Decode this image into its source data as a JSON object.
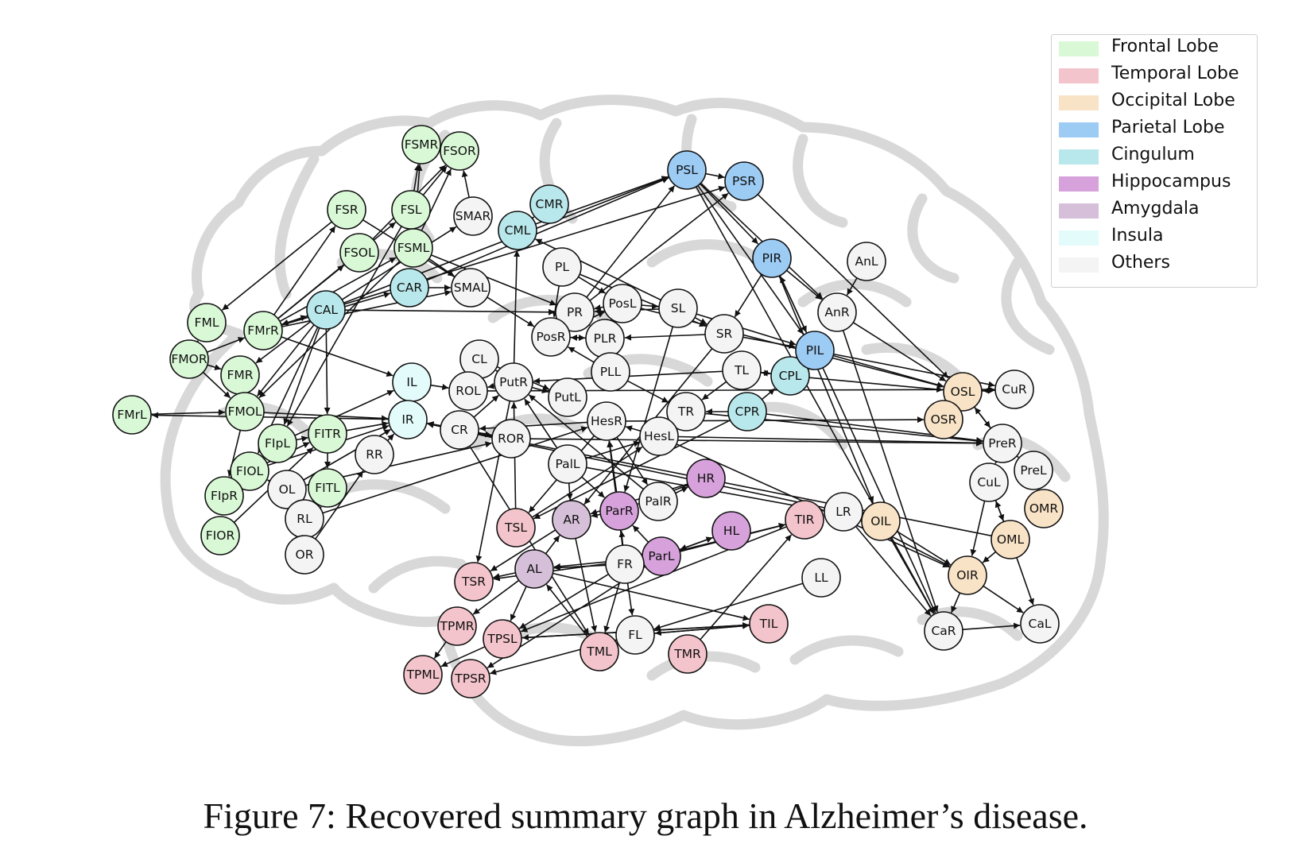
{
  "caption": "Figure 7: Recovered summary graph in Alzheimer’s disease.",
  "legend": [
    {
      "label": "Frontal Lobe",
      "color": "#d9f8d6"
    },
    {
      "label": "Temporal Lobe",
      "color": "#f3c4cb"
    },
    {
      "label": "Occipital Lobe",
      "color": "#f9e3c6"
    },
    {
      "label": "Parietal Lobe",
      "color": "#9ccbf4"
    },
    {
      "label": "Cingulum",
      "color": "#b9e8ec"
    },
    {
      "label": "Hippocampus",
      "color": "#d7a2dc"
    },
    {
      "label": "Amygdala",
      "color": "#d6c0d9"
    },
    {
      "label": "Insula",
      "color": "#e3fbfb"
    },
    {
      "label": "Others",
      "color": "#f4f4f4"
    }
  ],
  "nodes": [
    {
      "id": "FSMR",
      "group": "Frontal Lobe"
    },
    {
      "id": "FSOR",
      "group": "Frontal Lobe"
    },
    {
      "id": "FSR",
      "group": "Frontal Lobe"
    },
    {
      "id": "FSL",
      "group": "Frontal Lobe"
    },
    {
      "id": "FSOL",
      "group": "Frontal Lobe"
    },
    {
      "id": "FSML",
      "group": "Frontal Lobe"
    },
    {
      "id": "FML",
      "group": "Frontal Lobe"
    },
    {
      "id": "FMrR",
      "group": "Frontal Lobe"
    },
    {
      "id": "FMOR",
      "group": "Frontal Lobe"
    },
    {
      "id": "FMR",
      "group": "Frontal Lobe"
    },
    {
      "id": "FMOL",
      "group": "Frontal Lobe"
    },
    {
      "id": "FMrL",
      "group": "Frontal Lobe"
    },
    {
      "id": "FIpL",
      "group": "Frontal Lobe"
    },
    {
      "id": "FITR",
      "group": "Frontal Lobe"
    },
    {
      "id": "FIOL",
      "group": "Frontal Lobe"
    },
    {
      "id": "FIpR",
      "group": "Frontal Lobe"
    },
    {
      "id": "FITL",
      "group": "Frontal Lobe"
    },
    {
      "id": "FIOR",
      "group": "Frontal Lobe"
    },
    {
      "id": "SMAR",
      "group": "Others"
    },
    {
      "id": "SMAL",
      "group": "Others"
    },
    {
      "id": "CMR",
      "group": "Cingulum"
    },
    {
      "id": "CML",
      "group": "Cingulum"
    },
    {
      "id": "CAR",
      "group": "Cingulum"
    },
    {
      "id": "CAL",
      "group": "Cingulum"
    },
    {
      "id": "CPL",
      "group": "Cingulum"
    },
    {
      "id": "CPR",
      "group": "Cingulum"
    },
    {
      "id": "IL",
      "group": "Insula"
    },
    {
      "id": "IR",
      "group": "Insula"
    },
    {
      "id": "PSL",
      "group": "Parietal Lobe"
    },
    {
      "id": "PSR",
      "group": "Parietal Lobe"
    },
    {
      "id": "PIR",
      "group": "Parietal Lobe"
    },
    {
      "id": "PIL",
      "group": "Parietal Lobe"
    },
    {
      "id": "AnL",
      "group": "Others"
    },
    {
      "id": "AnR",
      "group": "Others"
    },
    {
      "id": "PL",
      "group": "Others"
    },
    {
      "id": "PR",
      "group": "Others"
    },
    {
      "id": "PosL",
      "group": "Others"
    },
    {
      "id": "PosR",
      "group": "Others"
    },
    {
      "id": "PLR",
      "group": "Others"
    },
    {
      "id": "PLL",
      "group": "Others"
    },
    {
      "id": "SL",
      "group": "Others"
    },
    {
      "id": "SR",
      "group": "Others"
    },
    {
      "id": "TL",
      "group": "Others"
    },
    {
      "id": "TR",
      "group": "Others"
    },
    {
      "id": "CL",
      "group": "Others"
    },
    {
      "id": "ROL",
      "group": "Others"
    },
    {
      "id": "PutR",
      "group": "Others"
    },
    {
      "id": "PutL",
      "group": "Others"
    },
    {
      "id": "CR",
      "group": "Others"
    },
    {
      "id": "ROR",
      "group": "Others"
    },
    {
      "id": "HesR",
      "group": "Others"
    },
    {
      "id": "HesL",
      "group": "Others"
    },
    {
      "id": "PalL",
      "group": "Others"
    },
    {
      "id": "PalR",
      "group": "Others"
    },
    {
      "id": "RR",
      "group": "Others"
    },
    {
      "id": "OL",
      "group": "Others"
    },
    {
      "id": "RL",
      "group": "Others"
    },
    {
      "id": "OR",
      "group": "Others"
    },
    {
      "id": "HR",
      "group": "Hippocampus"
    },
    {
      "id": "HL",
      "group": "Hippocampus"
    },
    {
      "id": "ParR",
      "group": "Hippocampus"
    },
    {
      "id": "ParL",
      "group": "Hippocampus"
    },
    {
      "id": "AR",
      "group": "Amygdala"
    },
    {
      "id": "AL",
      "group": "Amygdala"
    },
    {
      "id": "FR",
      "group": "Others"
    },
    {
      "id": "FL",
      "group": "Others"
    },
    {
      "id": "LR",
      "group": "Others"
    },
    {
      "id": "LL",
      "group": "Others"
    },
    {
      "id": "TSL",
      "group": "Temporal Lobe"
    },
    {
      "id": "TSR",
      "group": "Temporal Lobe"
    },
    {
      "id": "TPMR",
      "group": "Temporal Lobe"
    },
    {
      "id": "TPSL",
      "group": "Temporal Lobe"
    },
    {
      "id": "TPML",
      "group": "Temporal Lobe"
    },
    {
      "id": "TPSR",
      "group": "Temporal Lobe"
    },
    {
      "id": "TML",
      "group": "Temporal Lobe"
    },
    {
      "id": "TMR",
      "group": "Temporal Lobe"
    },
    {
      "id": "TIL",
      "group": "Temporal Lobe"
    },
    {
      "id": "TIR",
      "group": "Temporal Lobe"
    },
    {
      "id": "OSL",
      "group": "Occipital Lobe"
    },
    {
      "id": "OSR",
      "group": "Occipital Lobe"
    },
    {
      "id": "CuR",
      "group": "Others"
    },
    {
      "id": "PreR",
      "group": "Others"
    },
    {
      "id": "PreL",
      "group": "Others"
    },
    {
      "id": "CuL",
      "group": "Others"
    },
    {
      "id": "OMR",
      "group": "Occipital Lobe"
    },
    {
      "id": "OML",
      "group": "Occipital Lobe"
    },
    {
      "id": "OIL",
      "group": "Occipital Lobe"
    },
    {
      "id": "OIR",
      "group": "Occipital Lobe"
    },
    {
      "id": "CaR",
      "group": "Others"
    },
    {
      "id": "CaL",
      "group": "Others"
    }
  ],
  "edges": [
    [
      "FSL",
      "FSMR"
    ],
    [
      "FSL",
      "FSOR"
    ],
    [
      "FSML",
      "FSOR"
    ],
    [
      "FSML",
      "FSMR"
    ],
    [
      "SMAR",
      "FSOR"
    ],
    [
      "FSOL",
      "FSOR"
    ],
    [
      "FSR",
      "FML"
    ],
    [
      "FMrR",
      "FSR"
    ],
    [
      "FMrR",
      "FSOL"
    ],
    [
      "FMrR",
      "FSL"
    ],
    [
      "FMrR",
      "FSML"
    ],
    [
      "FMrR",
      "CAL"
    ],
    [
      "FMrR",
      "CAR"
    ],
    [
      "FMrR",
      "SMAL"
    ],
    [
      "FMOR",
      "FMR"
    ],
    [
      "FMOR",
      "FMrR"
    ],
    [
      "FMOR",
      "FML"
    ],
    [
      "FMOR",
      "FMOL"
    ],
    [
      "FMrL",
      "FMOL"
    ],
    [
      "FMR",
      "FMOL"
    ],
    [
      "FMOL",
      "FMR"
    ],
    [
      "FMOL",
      "FIpR"
    ],
    [
      "FMOL",
      "IR"
    ],
    [
      "IR",
      "FMrL"
    ],
    [
      "CAL",
      "FMOL"
    ],
    [
      "CAL",
      "FMR"
    ],
    [
      "CAL",
      "FMrR"
    ],
    [
      "CAL",
      "FIpL"
    ],
    [
      "CAL",
      "FIOL"
    ],
    [
      "CAL",
      "PR"
    ],
    [
      "CAL",
      "FITR"
    ],
    [
      "CAL",
      "SMAR"
    ],
    [
      "CAL",
      "PSL"
    ],
    [
      "CAL",
      "PSR"
    ],
    [
      "CAR",
      "SMAL"
    ],
    [
      "CAR",
      "PSL"
    ],
    [
      "FSML",
      "PR"
    ],
    [
      "FSML",
      "SMAL"
    ],
    [
      "FSML",
      "FMOL"
    ],
    [
      "FSR",
      "PosR"
    ],
    [
      "FSL",
      "FIpL"
    ],
    [
      "FITR",
      "FITL"
    ],
    [
      "FITR",
      "IR"
    ],
    [
      "FIOL",
      "IR"
    ],
    [
      "FIOL",
      "FITR"
    ],
    [
      "FIpL",
      "FITR"
    ],
    [
      "FIpL",
      "IL"
    ],
    [
      "FIOR",
      "FITR"
    ],
    [
      "FIpR",
      "FIOL"
    ],
    [
      "OL",
      "IR"
    ],
    [
      "OL",
      "ROR"
    ],
    [
      "OL",
      "FIOL"
    ],
    [
      "RR",
      "IR"
    ],
    [
      "RL",
      "HesR"
    ],
    [
      "OR",
      "FITL"
    ],
    [
      "OR",
      "RR"
    ],
    [
      "FMrR",
      "IL"
    ],
    [
      "IL",
      "ROL"
    ],
    [
      "CML",
      "CMR"
    ],
    [
      "CML",
      "PSL"
    ],
    [
      "SL",
      "CML"
    ],
    [
      "PutR",
      "CML"
    ],
    [
      "PutR",
      "CL"
    ],
    [
      "PutR",
      "ROL"
    ],
    [
      "PutR",
      "PutL"
    ],
    [
      "PutR",
      "TSR"
    ],
    [
      "CR",
      "ROR"
    ],
    [
      "CR",
      "IR"
    ],
    [
      "CR",
      "PutR"
    ],
    [
      "CR",
      "TML"
    ],
    [
      "ROR",
      "IR"
    ],
    [
      "ROR",
      "PreR"
    ],
    [
      "ROL",
      "CuR"
    ],
    [
      "PL",
      "PosR"
    ],
    [
      "PL",
      "PosL"
    ],
    [
      "PL",
      "SR"
    ],
    [
      "PR",
      "PSL"
    ],
    [
      "PR",
      "PSR"
    ],
    [
      "PR",
      "PLR"
    ],
    [
      "PosL",
      "SL"
    ],
    [
      "PosL",
      "PR"
    ],
    [
      "PosR",
      "PosL"
    ],
    [
      "PosR",
      "PLR"
    ],
    [
      "PLR",
      "PosR"
    ],
    [
      "PLL",
      "PosR"
    ],
    [
      "PLL",
      "TR"
    ],
    [
      "SL",
      "SR"
    ],
    [
      "SL",
      "PR"
    ],
    [
      "SL",
      "PIL"
    ],
    [
      "SL",
      "ParR"
    ],
    [
      "SR",
      "PIL"
    ],
    [
      "SR",
      "PLR"
    ],
    [
      "SR",
      "AR"
    ],
    [
      "TL",
      "CPL"
    ],
    [
      "TL",
      "TR"
    ],
    [
      "CPL",
      "TL"
    ],
    [
      "CPL",
      "OSL"
    ],
    [
      "CPR",
      "CPL"
    ],
    [
      "CPR",
      "TR"
    ],
    [
      "CPR",
      "PreR"
    ],
    [
      "CPR",
      "TSL"
    ],
    [
      "PSL",
      "PSR"
    ],
    [
      "PSL",
      "PIR"
    ],
    [
      "PSL",
      "PIL"
    ],
    [
      "PSL",
      "AnR"
    ],
    [
      "PSL",
      "CaR"
    ],
    [
      "PSR",
      "OSL"
    ],
    [
      "PIR",
      "SR"
    ],
    [
      "PIR",
      "PIL"
    ],
    [
      "PIL",
      "PIR"
    ],
    [
      "PIR",
      "AnR"
    ],
    [
      "PIR",
      "OIL"
    ],
    [
      "AnL",
      "AnR"
    ],
    [
      "AnR",
      "OSL"
    ],
    [
      "AnR",
      "CaR"
    ],
    [
      "PIL",
      "OSL"
    ],
    [
      "PIL",
      "CaR"
    ],
    [
      "PIL",
      "CuR"
    ],
    [
      "HesR",
      "PalR"
    ],
    [
      "HesR",
      "CR"
    ],
    [
      "HesR",
      "TSL"
    ],
    [
      "HesR",
      "OSR"
    ],
    [
      "HesL",
      "HesR"
    ],
    [
      "HesL",
      "PreR"
    ],
    [
      "HesL",
      "OIR"
    ],
    [
      "PalL",
      "AR"
    ],
    [
      "PalL",
      "HesL"
    ],
    [
      "PalL",
      "ParR"
    ],
    [
      "PalL",
      "PutR"
    ],
    [
      "PalL",
      "OIL"
    ],
    [
      "PalR",
      "HR"
    ],
    [
      "PalR",
      "PutR"
    ],
    [
      "HR",
      "ParR"
    ],
    [
      "HR",
      "AR"
    ],
    [
      "HL",
      "ParL"
    ],
    [
      "ParL",
      "HL"
    ],
    [
      "ParL",
      "AL"
    ],
    [
      "ParL",
      "TIR"
    ],
    [
      "ParL",
      "TSR"
    ],
    [
      "ParL",
      "TPSR"
    ],
    [
      "ParL",
      "ParR"
    ],
    [
      "ParR",
      "HesR"
    ],
    [
      "ParR",
      "AR"
    ],
    [
      "FR",
      "ParR"
    ],
    [
      "FR",
      "AL"
    ],
    [
      "FR",
      "TIR"
    ],
    [
      "FR",
      "FL"
    ],
    [
      "FR",
      "TML"
    ],
    [
      "FR",
      "TPSL"
    ],
    [
      "FR",
      "HesR"
    ],
    [
      "AL",
      "AR"
    ],
    [
      "AL",
      "TSR"
    ],
    [
      "AL",
      "TPSL"
    ],
    [
      "AL",
      "TIL"
    ],
    [
      "AL",
      "TPMR"
    ],
    [
      "AR",
      "TSR"
    ],
    [
      "AR",
      "TML"
    ],
    [
      "TSL",
      "PutR"
    ],
    [
      "TSL",
      "HesL"
    ],
    [
      "TPSL",
      "TPML"
    ],
    [
      "TPSL",
      "TIL"
    ],
    [
      "TPMR",
      "TPML"
    ],
    [
      "TML",
      "FL"
    ],
    [
      "TML",
      "AL"
    ],
    [
      "TMR",
      "TIR"
    ],
    [
      "TIL",
      "FL"
    ],
    [
      "TIL",
      "TPSL"
    ],
    [
      "FL",
      "TIL"
    ],
    [
      "FL",
      "TPSR"
    ],
    [
      "LL",
      "FL"
    ],
    [
      "LR",
      "CaR"
    ],
    [
      "LR",
      "OIR"
    ],
    [
      "LR",
      "IR"
    ],
    [
      "LR",
      "TIR"
    ],
    [
      "TIR",
      "TPSL"
    ],
    [
      "OSL",
      "CuR"
    ],
    [
      "OSL",
      "PreR"
    ],
    [
      "OSR",
      "OSL"
    ],
    [
      "OSL",
      "OSR"
    ],
    [
      "CuR",
      "OSL"
    ],
    [
      "PreR",
      "OSL"
    ],
    [
      "PreR",
      "PreL"
    ],
    [
      "PreR",
      "CuL"
    ],
    [
      "CuL",
      "OIR"
    ],
    [
      "CuL",
      "OML"
    ],
    [
      "OML",
      "CuL"
    ],
    [
      "OML",
      "OIR"
    ],
    [
      "OML",
      "CaL"
    ],
    [
      "OML",
      "IR"
    ],
    [
      "OIL",
      "OIR"
    ],
    [
      "OIL",
      "CaR"
    ],
    [
      "OIR",
      "CaR"
    ],
    [
      "OIR",
      "CaL"
    ],
    [
      "CaR",
      "CaL"
    ],
    [
      "TR",
      "PreR"
    ],
    [
      "PosL",
      "OSL"
    ],
    [
      "CL",
      "PutL"
    ],
    [
      "TL",
      "PutR"
    ]
  ]
}
